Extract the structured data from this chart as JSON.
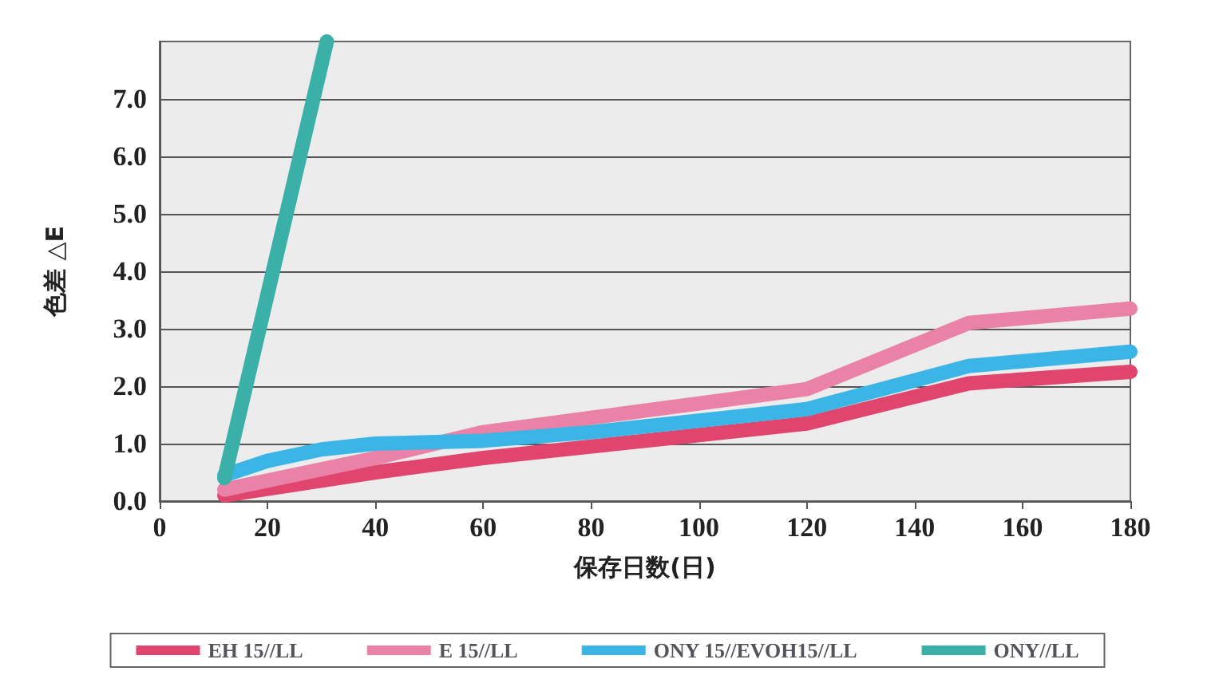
{
  "chart_data": {
    "type": "line",
    "xlabel": "保存日数(日)",
    "ylabel": "色差 △E",
    "xlim": [
      0,
      180
    ],
    "xticks": [
      0,
      20,
      40,
      60,
      80,
      100,
      120,
      140,
      160,
      180
    ],
    "ylim": [
      0,
      8
    ],
    "yticks": [
      {
        "value": 0,
        "label": "0.0"
      },
      {
        "value": 1,
        "label": "1.0"
      },
      {
        "value": 2,
        "label": "2.0"
      },
      {
        "value": 3,
        "label": "3.0"
      },
      {
        "value": 4,
        "label": "4.0"
      },
      {
        "value": 5,
        "label": "5.0"
      },
      {
        "value": 6,
        "label": "6.0"
      },
      {
        "value": 7,
        "label": "7.0"
      }
    ],
    "grid": "y",
    "legend": "bottom",
    "marker": "none",
    "line_style": "solid",
    "series": [
      {
        "name": "EH 15//LL",
        "color": "#e0456e",
        "x": [
          12,
          40,
          60,
          80,
          100,
          120,
          150,
          180
        ],
        "values": [
          0.1,
          0.5,
          0.75,
          0.95,
          1.15,
          1.35,
          2.05,
          2.25
        ]
      },
      {
        "name": "E 15//LL",
        "color": "#e982a6",
        "x": [
          12,
          40,
          60,
          80,
          100,
          120,
          150,
          180
        ],
        "values": [
          0.2,
          0.75,
          1.2,
          1.45,
          1.7,
          1.95,
          3.1,
          3.35
        ]
      },
      {
        "name": "ONY 15//EVOH15//LL",
        "color": "#3bb4e6",
        "x": [
          12,
          20,
          30,
          40,
          60,
          80,
          100,
          120,
          150,
          180
        ],
        "values": [
          0.45,
          0.7,
          0.9,
          1.0,
          1.05,
          1.2,
          1.4,
          1.6,
          2.35,
          2.6
        ]
      },
      {
        "name": "ONY//LL",
        "color": "#3bb0a8",
        "x": [
          12,
          31
        ],
        "values": [
          0.4,
          8
        ]
      }
    ]
  }
}
